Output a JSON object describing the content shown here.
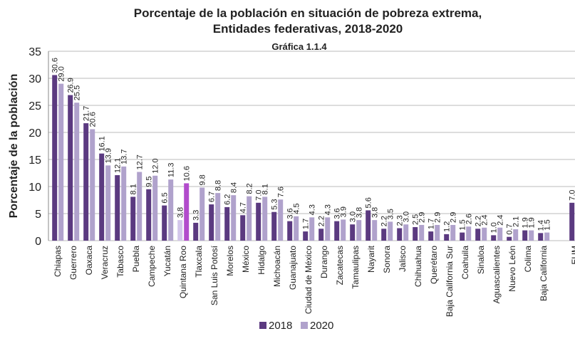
{
  "chart_data": {
    "type": "bar",
    "title": "Porcentaje de la población en situación de pobreza extrema,",
    "subtitle": "Entidades federativas, 2018-2020",
    "caption": "Gráfica 1.1.4",
    "ylabel": "Porcentaje de la población",
    "categories": [
      "Chiapas",
      "Guerrero",
      "Oaxaca",
      "Veracruz",
      "Tabasco",
      "Puebla",
      "Campeche",
      "Yucatán",
      "Quintana Roo",
      "Tlaxcala",
      "San Luis Potosí",
      "Morelos",
      "México",
      "Hidalgo",
      "Michoacán",
      "Guanajuato",
      "Ciudad de México",
      "Durango",
      "Zacatecas",
      "Tamaulipas",
      "Nayarit",
      "Sonora",
      "Jalisco",
      "Chihuahua",
      "Querétaro",
      "Baja California Sur",
      "Coahuila",
      "Sinaloa",
      "Aguascalientes",
      "Nuevo León",
      "Colima",
      "Baja California",
      "EUM"
    ],
    "series": [
      {
        "name": "2018",
        "color": "#5b3a80",
        "values": [
          30.6,
          26.9,
          21.7,
          16.1,
          12.1,
          8.1,
          9.5,
          6.5,
          3.8,
          3.3,
          6.7,
          6.2,
          4.7,
          7.0,
          5.3,
          3.6,
          1.7,
          2.2,
          3.6,
          3.0,
          5.6,
          2.2,
          2.3,
          2.5,
          1.7,
          1.2,
          1.5,
          2.2,
          1.0,
          0.7,
          1.9,
          1.4,
          7.0
        ],
        "value_labels": [
          "30.6",
          "26.9",
          "21.7",
          "16.1",
          "12.1",
          "8.1",
          "9.5",
          "6.5",
          "3.8",
          "3.3",
          "6.7",
          "6.2",
          "4.7",
          "7.0",
          "5.3",
          "3.6",
          "1.7",
          "2.2",
          "3.6",
          "3.0",
          "5.6",
          "2.2",
          "2.3",
          "2.5",
          "1.7",
          "1.2",
          "1.5",
          "2.2",
          "1.0",
          "0.7",
          "1.9",
          "1.4",
          "7.0"
        ]
      },
      {
        "name": "2020",
        "color": "#b0a2cc",
        "values": [
          29.0,
          25.5,
          20.6,
          13.9,
          13.7,
          12.7,
          12.0,
          11.3,
          10.6,
          9.8,
          8.8,
          8.4,
          8.2,
          8.1,
          7.6,
          4.5,
          4.3,
          4.3,
          3.9,
          3.8,
          3.8,
          3.5,
          3.0,
          2.9,
          2.9,
          2.9,
          2.6,
          2.4,
          2.4,
          2.1,
          1.9,
          1.5,
          null
        ],
        "value_labels": [
          "29.0",
          "25.5",
          "20.6",
          "13.9",
          "13.7",
          "12.7",
          "12.0",
          "11.3",
          "10.6",
          "9.8",
          "8.8",
          "8.4",
          "8.2",
          "8.1",
          "7.6",
          "4.5",
          "4.3",
          "4.3",
          "3.9",
          "3.8",
          "3.8",
          "3.5",
          "3.0",
          "2.9",
          "2.9",
          "2.9",
          "2.6",
          "2.4",
          "2.4",
          "2.1",
          "1.9",
          "1.5",
          null
        ]
      }
    ],
    "highlight_index": 8,
    "highlight_colors": [
      "#d3c6ea",
      "#b24ccc"
    ],
    "ylim": [
      0,
      35
    ],
    "yticks": [
      0,
      5,
      10,
      15,
      20,
      25,
      30,
      35
    ],
    "grid": true
  }
}
